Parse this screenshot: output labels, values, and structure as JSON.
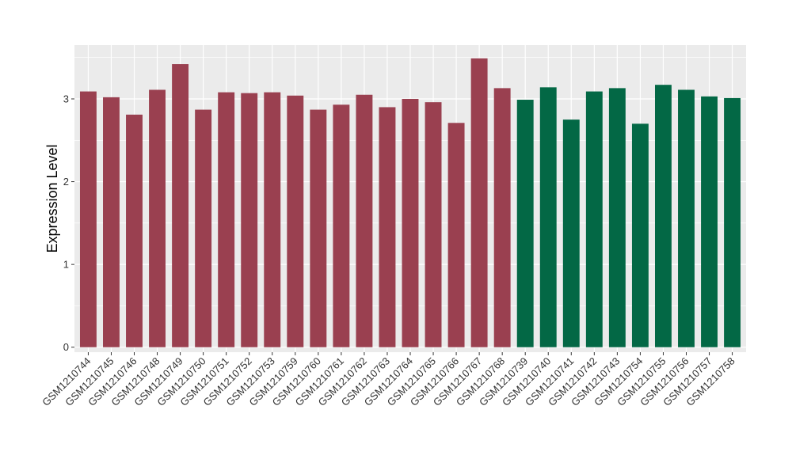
{
  "chart_data": {
    "type": "bar",
    "title": "",
    "xlabel": "",
    "ylabel": "Expression Level",
    "ylim": [
      -0.06,
      3.65
    ],
    "yticks": [
      0,
      1,
      2,
      3
    ],
    "grid": true,
    "categories": [
      "GSM1210744",
      "GSM1210745",
      "GSM1210746",
      "GSM1210748",
      "GSM1210749",
      "GSM1210750",
      "GSM1210751",
      "GSM1210752",
      "GSM1210753",
      "GSM1210759",
      "GSM1210760",
      "GSM1210761",
      "GSM1210762",
      "GSM1210763",
      "GSM1210764",
      "GSM1210765",
      "GSM1210766",
      "GSM1210767",
      "GSM1210768",
      "GSM1210739",
      "GSM1210740",
      "GSM1210741",
      "GSM1210742",
      "GSM1210743",
      "GSM1210754",
      "GSM1210755",
      "GSM1210756",
      "GSM1210757",
      "GSM1210758"
    ],
    "values": [
      3.09,
      3.02,
      2.81,
      3.11,
      3.42,
      2.87,
      3.08,
      3.07,
      3.08,
      3.04,
      2.87,
      2.93,
      3.05,
      2.9,
      3.0,
      2.96,
      2.71,
      3.49,
      3.13,
      2.99,
      3.14,
      2.75,
      3.09,
      3.13,
      2.7,
      3.17,
      3.11,
      3.03,
      3.01
    ],
    "colors": [
      "#9a4050",
      "#9a4050",
      "#9a4050",
      "#9a4050",
      "#9a4050",
      "#9a4050",
      "#9a4050",
      "#9a4050",
      "#9a4050",
      "#9a4050",
      "#9a4050",
      "#9a4050",
      "#9a4050",
      "#9a4050",
      "#9a4050",
      "#9a4050",
      "#9a4050",
      "#9a4050",
      "#9a4050",
      "#036845",
      "#036845",
      "#036845",
      "#036845",
      "#036845",
      "#036845",
      "#036845",
      "#036845",
      "#036845",
      "#036845"
    ],
    "panel_background": "#ebebeb",
    "gridline_color": "#ffffff"
  }
}
